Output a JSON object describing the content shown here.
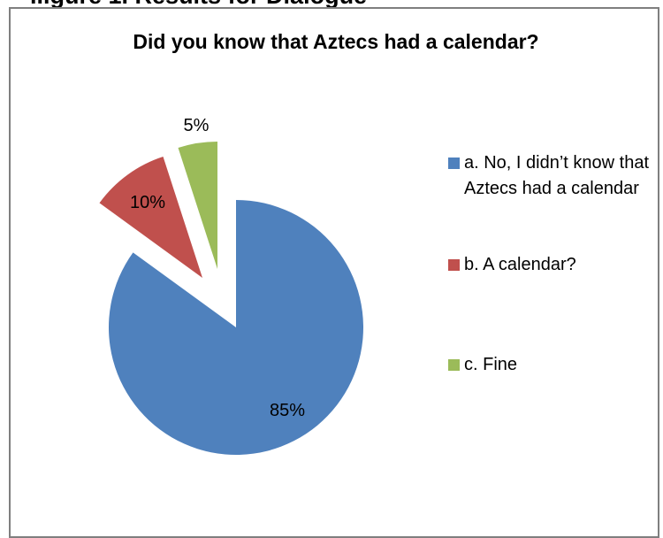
{
  "top_heading": "...gure 1. Results for Dialogue",
  "chart_data": {
    "type": "pie",
    "title": "Did you know that Aztecs had a calendar?",
    "slices": [
      {
        "label": "a. No, I didn’t know that Aztecs had a calendar",
        "value": 85,
        "data_label": "85%",
        "color": "#4f81bd"
      },
      {
        "label": "b. A calendar?",
        "value": 10,
        "data_label": "10%",
        "color": "#c0504d"
      },
      {
        "label": "c. Fine",
        "value": 5,
        "data_label": "5%",
        "color": "#9bbb59"
      }
    ],
    "exploded": true,
    "legend_position": "right"
  }
}
